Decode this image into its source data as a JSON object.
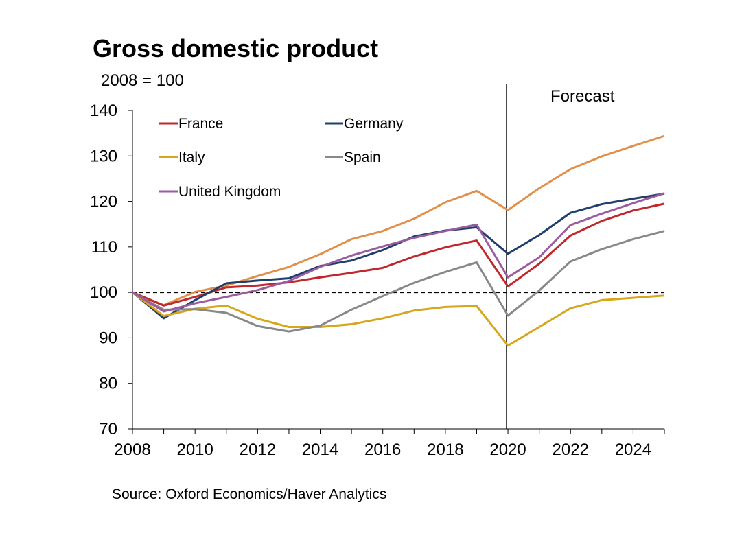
{
  "chart_data": {
    "type": "line",
    "title": "Gross domestic product",
    "ylabel": "2008 = 100",
    "xlabel": "",
    "source": "Source: Oxford Economics/Haver Analytics",
    "forecast_label": "Forecast",
    "forecast_start": 2019.95,
    "baseline": 100,
    "xlim": [
      2008,
      2025
    ],
    "ylim": [
      70,
      140
    ],
    "x_ticks": [
      2008,
      2010,
      2012,
      2014,
      2016,
      2018,
      2020,
      2022,
      2024
    ],
    "y_ticks": [
      70,
      80,
      90,
      100,
      110,
      120,
      130,
      140
    ],
    "x": [
      2008,
      2009,
      2010,
      2011,
      2012,
      2013,
      2014,
      2015,
      2016,
      2017,
      2018,
      2019,
      2020,
      2021,
      2022,
      2023,
      2024,
      2025
    ],
    "series": [
      {
        "name": "",
        "color": "#E0904A",
        "in_legend": false,
        "values": [
          100,
          97.2,
          100.1,
          101.5,
          103.6,
          105.6,
          108.4,
          111.7,
          113.5,
          116.2,
          119.8,
          122.3,
          118.1,
          122.9,
          127.1,
          129.9,
          132.2,
          134.4
        ]
      },
      {
        "name": "France",
        "color": "#C0282D",
        "in_legend": true,
        "values": [
          100,
          97.1,
          99.0,
          101.1,
          101.5,
          102.2,
          103.3,
          104.3,
          105.4,
          107.9,
          109.9,
          111.4,
          101.3,
          106.3,
          112.5,
          115.7,
          118.0,
          119.5
        ]
      },
      {
        "name": "Germany",
        "color": "#1F3F6E",
        "in_legend": true,
        "values": [
          100,
          94.3,
          98.3,
          102.0,
          102.6,
          103.1,
          105.8,
          107.0,
          109.3,
          112.3,
          113.6,
          114.3,
          108.5,
          112.6,
          117.5,
          119.4,
          120.6,
          121.7
        ]
      },
      {
        "name": "Italy",
        "color": "#D8A61C",
        "in_legend": true,
        "values": [
          100,
          94.8,
          96.4,
          97.1,
          94.2,
          92.4,
          92.4,
          93.0,
          94.3,
          96.0,
          96.8,
          97.0,
          88.3,
          92.4,
          96.5,
          98.3,
          98.8,
          99.3
        ]
      },
      {
        "name": "Spain",
        "color": "#888888",
        "in_legend": true,
        "values": [
          100,
          96.2,
          96.3,
          95.5,
          92.6,
          91.4,
          92.7,
          96.2,
          99.2,
          102.1,
          104.5,
          106.6,
          94.9,
          100.4,
          106.8,
          109.5,
          111.7,
          113.5
        ]
      },
      {
        "name": "United Kingdom",
        "color": "#9B5B9F",
        "in_legend": true,
        "values": [
          100,
          95.8,
          97.6,
          99.0,
          100.5,
          102.5,
          105.6,
          108.1,
          110.1,
          112.0,
          113.5,
          114.9,
          103.3,
          107.7,
          114.8,
          117.3,
          119.6,
          121.8
        ]
      }
    ]
  }
}
